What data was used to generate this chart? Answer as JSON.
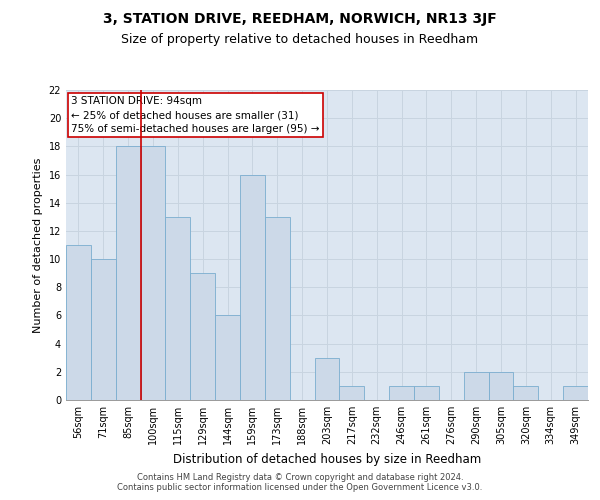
{
  "title": "3, STATION DRIVE, REEDHAM, NORWICH, NR13 3JF",
  "subtitle": "Size of property relative to detached houses in Reedham",
  "xlabel": "Distribution of detached houses by size in Reedham",
  "ylabel": "Number of detached properties",
  "categories": [
    "56sqm",
    "71sqm",
    "85sqm",
    "100sqm",
    "115sqm",
    "129sqm",
    "144sqm",
    "159sqm",
    "173sqm",
    "188sqm",
    "203sqm",
    "217sqm",
    "232sqm",
    "246sqm",
    "261sqm",
    "276sqm",
    "290sqm",
    "305sqm",
    "320sqm",
    "334sqm",
    "349sqm"
  ],
  "values": [
    11,
    10,
    18,
    18,
    13,
    9,
    6,
    16,
    13,
    0,
    3,
    1,
    0,
    1,
    1,
    0,
    2,
    2,
    1,
    0,
    1
  ],
  "bar_color": "#ccd9e8",
  "bar_edge_color": "#7aadcf",
  "annotation_text": "3 STATION DRIVE: 94sqm\n← 25% of detached houses are smaller (31)\n75% of semi-detached houses are larger (95) →",
  "annotation_box_color": "#ffffff",
  "annotation_box_edge_color": "#cc0000",
  "vline_color": "#cc0000",
  "vline_position": 2.5,
  "ylim": [
    0,
    22
  ],
  "yticks": [
    0,
    2,
    4,
    6,
    8,
    10,
    12,
    14,
    16,
    18,
    20,
    22
  ],
  "grid_color": "#c8d4e0",
  "bg_color": "#dce6f1",
  "footer_text": "Contains HM Land Registry data © Crown copyright and database right 2024.\nContains public sector information licensed under the Open Government Licence v3.0.",
  "title_fontsize": 10,
  "subtitle_fontsize": 9,
  "xlabel_fontsize": 8.5,
  "ylabel_fontsize": 8,
  "tick_fontsize": 7,
  "footer_fontsize": 6,
  "annotation_fontsize": 7.5
}
